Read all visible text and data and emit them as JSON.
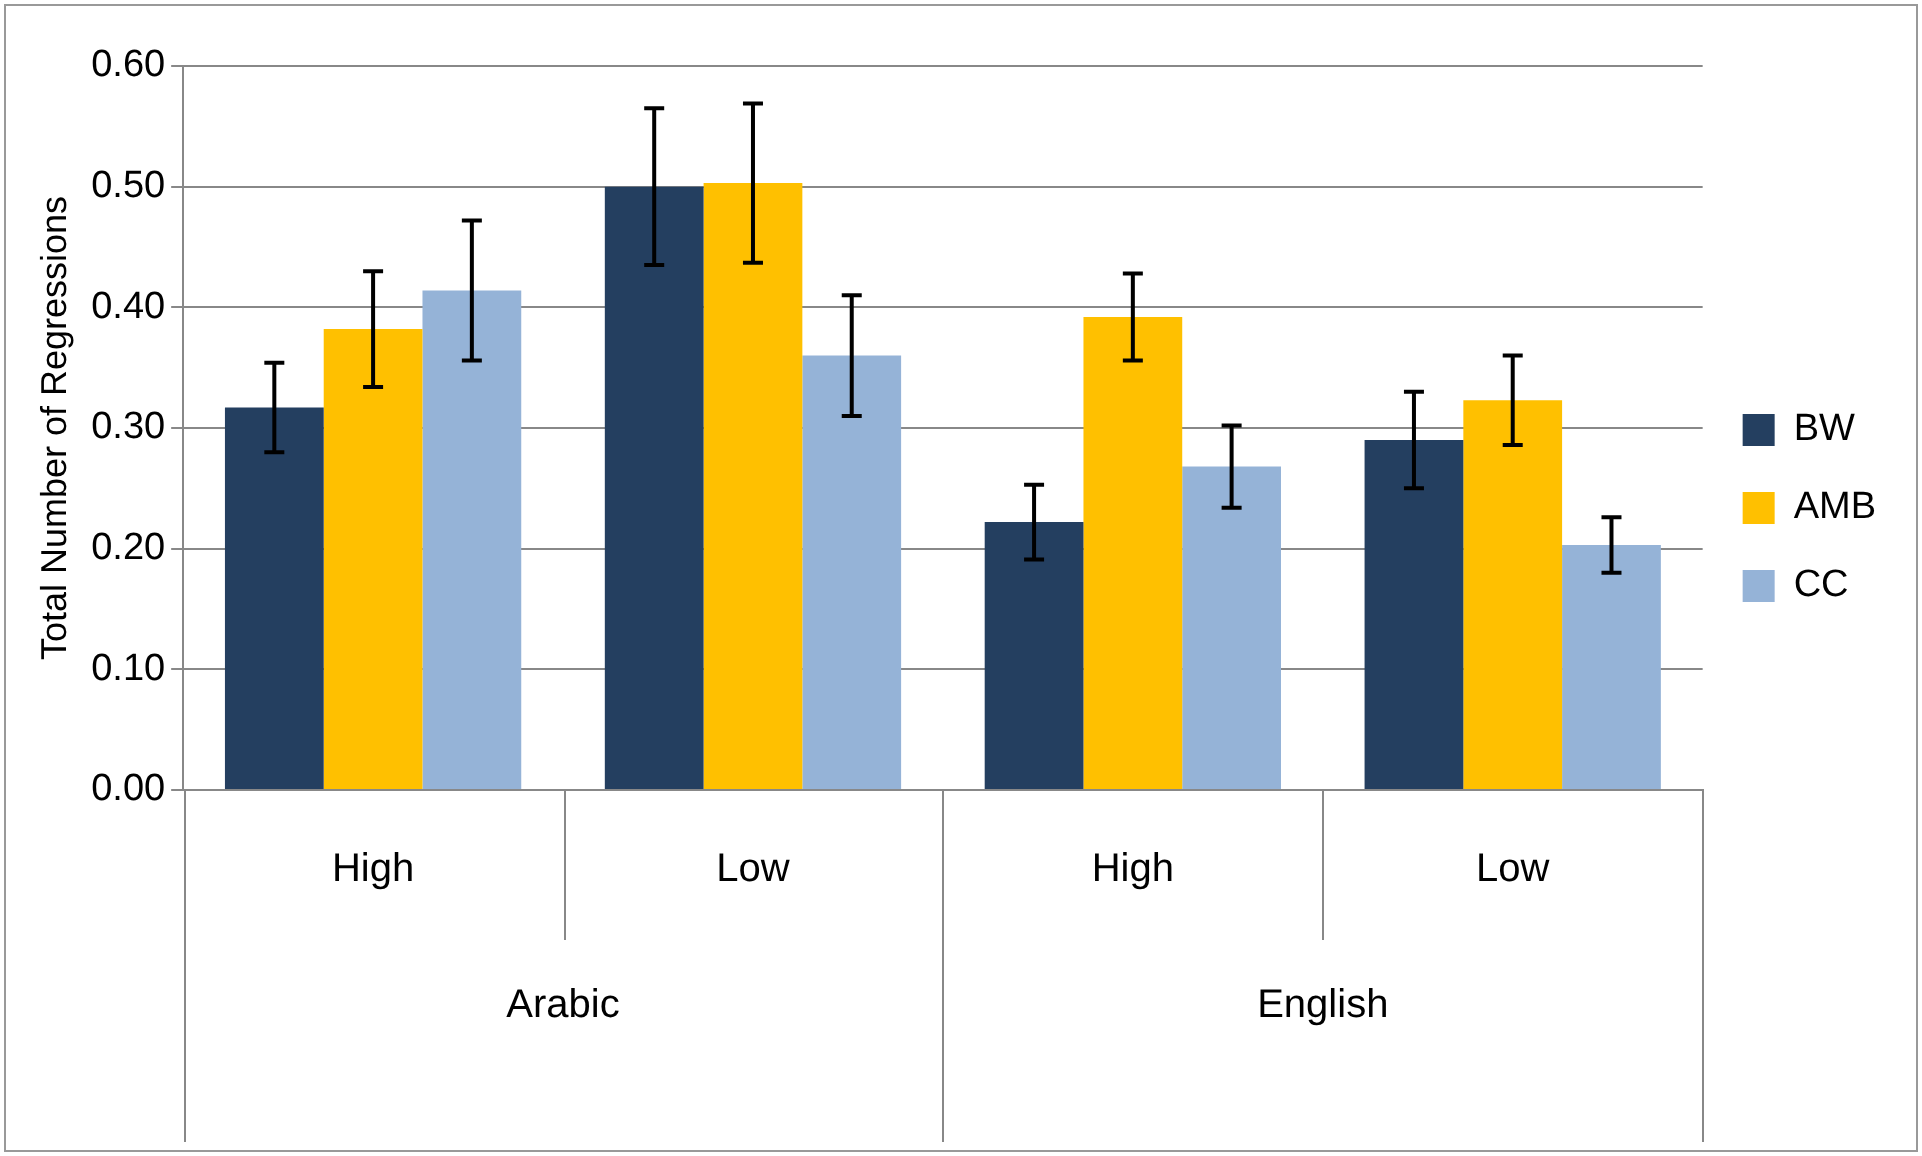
{
  "chart_data": {
    "type": "bar",
    "ylabel": "Total Number of Regressions",
    "categories": [
      "High",
      "Low",
      "High",
      "Low"
    ],
    "annotations": [
      "Arabic",
      "English"
    ],
    "series": [
      {
        "name": "BW",
        "color": "#243f60",
        "values": [
          0.317,
          0.5,
          0.222,
          0.29
        ],
        "errors": [
          0.037,
          0.065,
          0.031,
          0.04
        ]
      },
      {
        "name": "AMB",
        "color": "#ffc000",
        "values": [
          0.382,
          0.503,
          0.392,
          0.323
        ],
        "errors": [
          0.048,
          0.066,
          0.036,
          0.037
        ]
      },
      {
        "name": "CC",
        "color": "#95b3d7",
        "values": [
          0.414,
          0.36,
          0.268,
          0.203
        ],
        "errors": [
          0.058,
          0.05,
          0.034,
          0.023
        ]
      }
    ],
    "ylim": [
      0,
      0.6
    ],
    "yticks": [
      {
        "value": 0,
        "label": "0.00"
      },
      {
        "value": 0.1,
        "label": "0.10"
      },
      {
        "value": 0.2,
        "label": "0.20"
      },
      {
        "value": 0.3,
        "label": "0.30"
      },
      {
        "value": 0.4,
        "label": "0.40"
      },
      {
        "value": 0.5,
        "label": "0.50"
      },
      {
        "value": 0.6,
        "label": "0.60"
      }
    ],
    "grid": "y",
    "legend": "right"
  }
}
